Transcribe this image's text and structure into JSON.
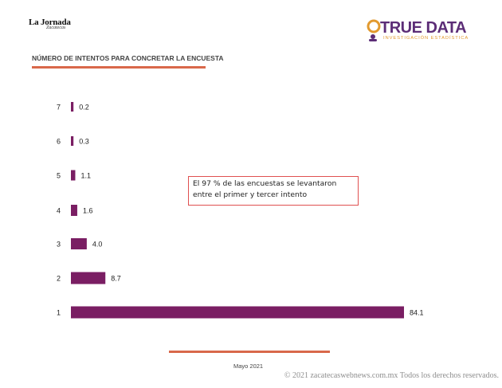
{
  "header": {
    "left_logo_text": "La Jornada",
    "left_logo_subtext": "Zacatecas",
    "right_logo_name": "TRUE DATA",
    "right_logo_tagline": "INVESTIGACIÓN ESTADÍSTICA"
  },
  "chart_data": {
    "type": "bar",
    "orientation": "horizontal",
    "title": "NÚMERO DE INTENTOS PARA CONCRETAR LA ENCUESTA",
    "categories": [
      "7",
      "6",
      "5",
      "4",
      "3",
      "2",
      "1"
    ],
    "values": [
      0.2,
      0.3,
      1.1,
      1.6,
      4.0,
      8.7,
      84.1
    ],
    "value_labels": [
      "0.2",
      "0.3",
      "1.1",
      "1.6",
      "4.0",
      "8.7",
      "84.1"
    ],
    "xlim": [
      0,
      84.1
    ],
    "bar_color": "#7a1e63",
    "grid": false,
    "legend": "none",
    "annotation": "El 97 % de las encuestas se levantaron entre el primer y tercer intento"
  },
  "footer": {
    "date": "Mayo 2021",
    "copyright": "© 2021 zacatecaswebnews.com.mx Todos los derechos reservados."
  },
  "colors": {
    "accent_rule": "#d9684a",
    "brand_purple": "#5c2d77",
    "brand_orange": "#e29a2f",
    "callout_border": "#e05050"
  }
}
